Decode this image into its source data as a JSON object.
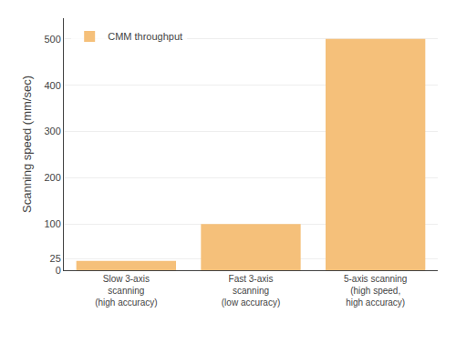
{
  "chart_data": {
    "type": "bar",
    "categories": [
      "Slow 3-axis\nscanning\n(high accuracy)",
      "Fast 3-axis\nscanning\n(low accuracy)",
      "5-axis scanning\n(high speed,\nhigh accuracy)"
    ],
    "series": [
      {
        "name": "CMM throughput",
        "color": "#f5c07a",
        "values": [
          20,
          100,
          500
        ]
      }
    ],
    "ylabel": "Scanning speed (mm/sec)",
    "ylim": [
      0,
      545
    ],
    "yticks": [
      0,
      25,
      100,
      200,
      300,
      400,
      500
    ],
    "grid": true,
    "legend": "upper left"
  }
}
